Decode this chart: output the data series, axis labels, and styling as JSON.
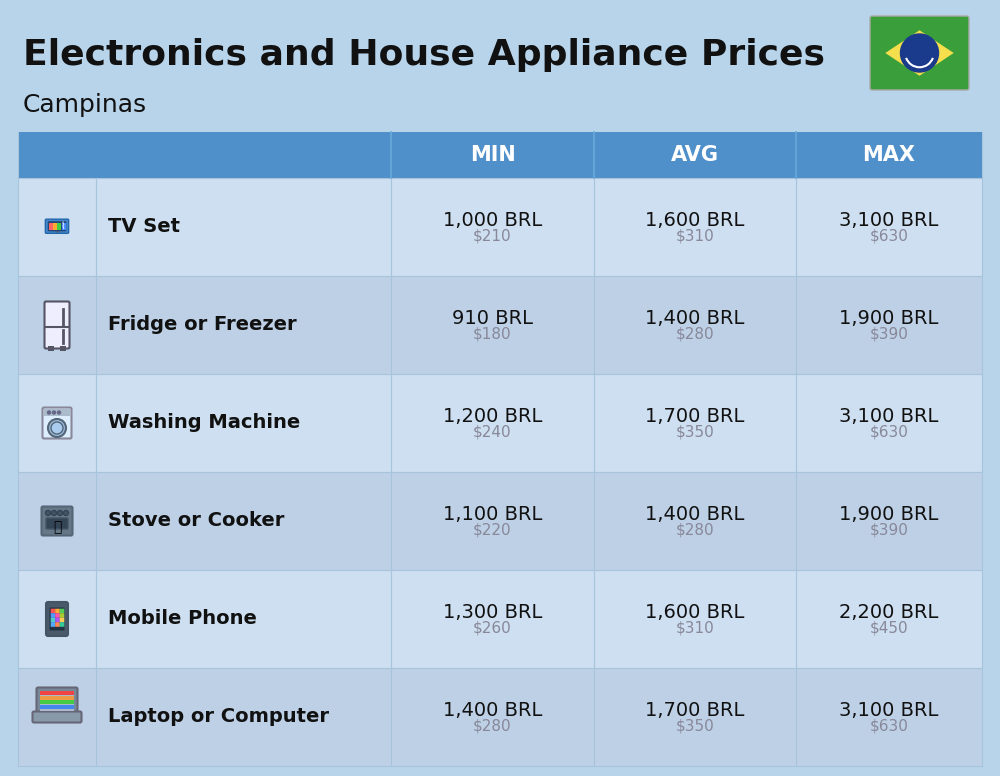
{
  "title": "Electronics and House Appliance Prices",
  "subtitle": "Campinas",
  "background_color": "#b8d4ea",
  "header_color": "#4f8fca",
  "header_text_color": "#ffffff",
  "row_color_light": "#cddff0",
  "row_color_dark": "#bdd0e6",
  "title_fontsize": 26,
  "subtitle_fontsize": 18,
  "header_fontsize": 15,
  "item_name_fontsize": 14,
  "value_fontsize": 14,
  "usd_fontsize": 11,
  "items": [
    {
      "name": "TV Set",
      "min_brl": "1,000 BRL",
      "min_usd": "$210",
      "avg_brl": "1,600 BRL",
      "avg_usd": "$310",
      "max_brl": "3,100 BRL",
      "max_usd": "$630"
    },
    {
      "name": "Fridge or Freezer",
      "min_brl": "910 BRL",
      "min_usd": "$180",
      "avg_brl": "1,400 BRL",
      "avg_usd": "$280",
      "max_brl": "1,900 BRL",
      "max_usd": "$390"
    },
    {
      "name": "Washing Machine",
      "min_brl": "1,200 BRL",
      "min_usd": "$240",
      "avg_brl": "1,700 BRL",
      "avg_usd": "$350",
      "max_brl": "3,100 BRL",
      "max_usd": "$630"
    },
    {
      "name": "Stove or Cooker",
      "min_brl": "1,100 BRL",
      "min_usd": "$220",
      "avg_brl": "1,400 BRL",
      "avg_usd": "$280",
      "max_brl": "1,900 BRL",
      "max_usd": "$390"
    },
    {
      "name": "Mobile Phone",
      "min_brl": "1,300 BRL",
      "min_usd": "$260",
      "avg_brl": "1,600 BRL",
      "avg_usd": "$310",
      "max_brl": "2,200 BRL",
      "max_usd": "$450"
    },
    {
      "name": "Laptop or Computer",
      "min_brl": "1,400 BRL",
      "min_usd": "$280",
      "avg_brl": "1,700 BRL",
      "avg_usd": "$350",
      "max_brl": "3,100 BRL",
      "max_usd": "$630"
    }
  ]
}
